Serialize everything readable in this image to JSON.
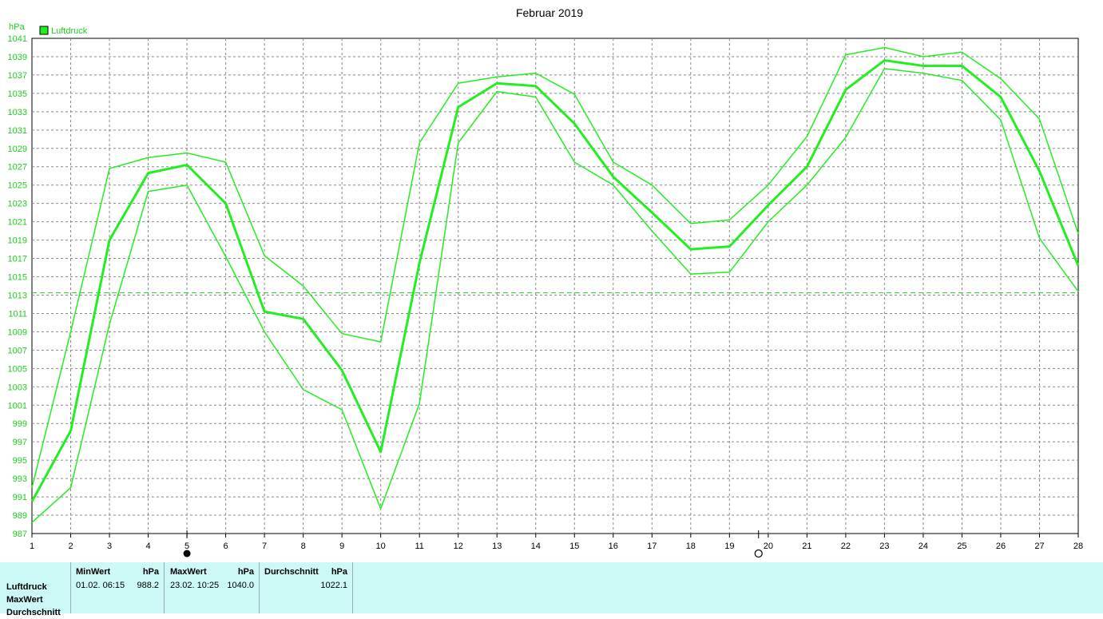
{
  "chart_data": {
    "type": "line",
    "title": "Februar 2019",
    "ylabel": "hPa",
    "legend": "Luftdruck",
    "legend_placement": "top-left",
    "x": [
      1,
      2,
      3,
      4,
      5,
      6,
      7,
      8,
      9,
      10,
      11,
      12,
      13,
      14,
      15,
      16,
      17,
      18,
      19,
      20,
      21,
      22,
      23,
      24,
      25,
      26,
      27,
      28
    ],
    "ylim": [
      987,
      1041
    ],
    "yticks": [
      987,
      989,
      991,
      993,
      995,
      997,
      999,
      1001,
      1003,
      1005,
      1007,
      1009,
      1011,
      1013,
      1015,
      1017,
      1019,
      1021,
      1023,
      1025,
      1027,
      1029,
      1031,
      1033,
      1035,
      1037,
      1039,
      1041
    ],
    "reference_line": 1013.25,
    "grid": true,
    "series": [
      {
        "role": "max",
        "values": [
          992.0,
          1009.0,
          1026.8,
          1028.0,
          1028.5,
          1027.5,
          1017.3,
          1014.0,
          1008.8,
          1007.9,
          1029.6,
          1036.1,
          1036.8,
          1037.2,
          1034.9,
          1027.5,
          1025.0,
          1020.8,
          1021.2,
          1025.0,
          1030.3,
          1039.2,
          1040.0,
          1039.0,
          1039.5,
          1036.6,
          1032.2,
          1019.7
        ]
      },
      {
        "role": "mean",
        "values": [
          990.5,
          998.2,
          1019.0,
          1026.3,
          1027.2,
          1023.0,
          1011.2,
          1010.4,
          1004.8,
          995.9,
          1016.5,
          1033.5,
          1036.1,
          1035.8,
          1031.7,
          1025.9,
          1022.0,
          1018.0,
          1018.3,
          1022.8,
          1027.0,
          1035.4,
          1038.6,
          1038.0,
          1038.0,
          1034.6,
          1026.5,
          1016.2
        ]
      },
      {
        "role": "min",
        "values": [
          988.2,
          992.0,
          1009.8,
          1024.3,
          1025.0,
          1017.2,
          1009.0,
          1002.7,
          1000.5,
          989.7,
          1001.2,
          1029.6,
          1035.2,
          1034.6,
          1027.5,
          1025.0,
          1020.0,
          1015.3,
          1015.5,
          1021.0,
          1025.0,
          1030.2,
          1037.7,
          1037.2,
          1036.4,
          1032.1,
          1019.2,
          1013.4
        ]
      }
    ],
    "moon_phases": [
      {
        "day": 5,
        "phase": "new-moon"
      },
      {
        "day": 19.75,
        "phase": "full-moon"
      }
    ],
    "colors": {
      "line": "#22ee22",
      "axis_text": "#22cc22",
      "grid": "#888888",
      "reference": "#22cc22",
      "footer_bg": "#ccf8f6"
    }
  },
  "stats": {
    "row_labels": [
      "Luftdruck",
      "MaxWert",
      "Durchschnitt"
    ],
    "min_header": "MinWert",
    "min_unit": "hPa",
    "min_time": "01.02.  06:15",
    "min_value": "988.2",
    "max_header": "MaxWert",
    "max_unit": "hPa",
    "max_time": "23.02.  10:25",
    "max_value": "1040.0",
    "avg_header": "Durchschnitt",
    "avg_unit": "hPa",
    "avg_value": "1022.1"
  }
}
